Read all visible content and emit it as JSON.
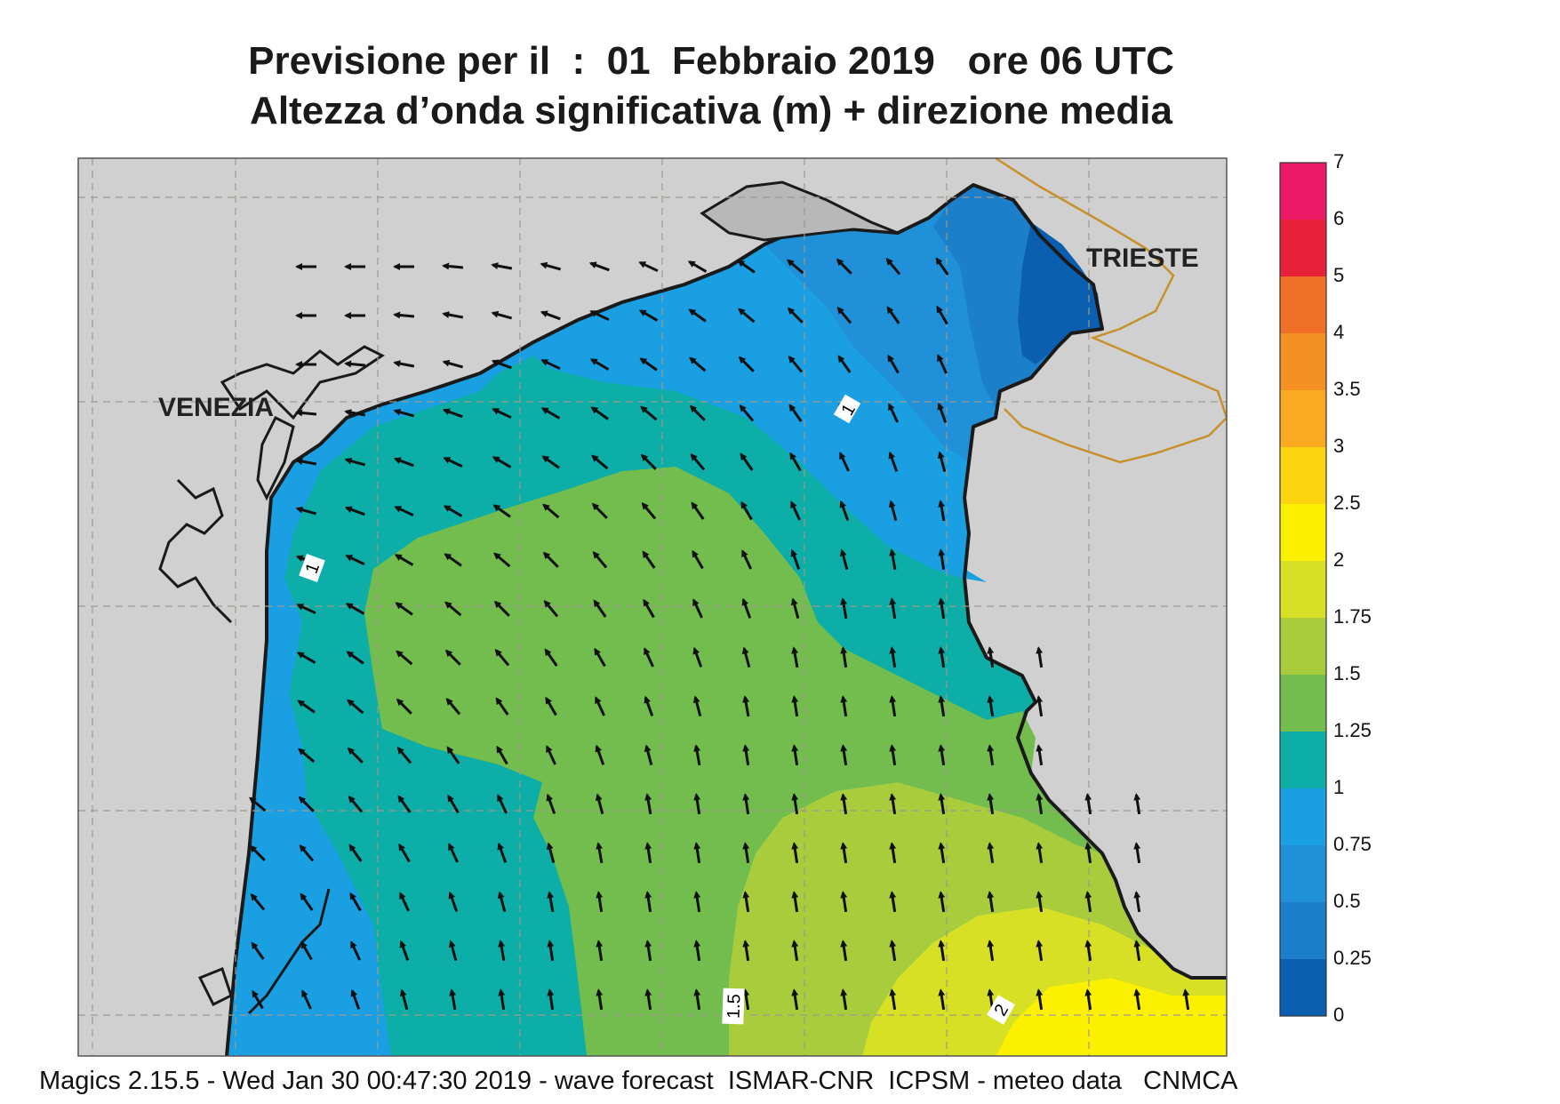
{
  "header": {
    "title_line1": "Previsione per il  :  01  Febbraio 2019   ore 06 UTC",
    "title_line2": "Altezza d’onda significativa (m) + direzione media"
  },
  "map": {
    "place_labels": [
      "VENEZIA",
      "TRIESTE"
    ],
    "contour_labels": [
      "1",
      "1",
      "1.5",
      "2"
    ],
    "sea_colors": {
      "0-0.25": "#0b5fb0",
      "0.25-0.5": "#1c7fc9",
      "0.5-0.75": "#2090d8",
      "0.75-1": "#1aa0e2",
      "1-1.25": "#0dada8",
      "1.25-1.5": "#72bd4e",
      "1.5-1.75": "#a8cc3c",
      "1.75-2": "#d8e026",
      "2-2.5": "#fbf000"
    },
    "land_color": "#d0d0d0",
    "border_color": "#c8902a"
  },
  "legend": {
    "labels": [
      "7",
      "6",
      "5",
      "4",
      "3.5",
      "3",
      "2.5",
      "2",
      "1.75",
      "1.5",
      "1.25",
      "1",
      "0.75",
      "0.5",
      "0.25",
      "0"
    ],
    "colors": [
      "#ee1868",
      "#e8203a",
      "#f07028",
      "#f59022",
      "#f8aa20",
      "#fcd410",
      "#fcf000",
      "#d8e026",
      "#a8cc3c",
      "#72bd4e",
      "#0dada8",
      "#1aa0e2",
      "#2090d8",
      "#1c7fc9",
      "#0b5fb0"
    ]
  },
  "footer": {
    "text": "Magics 2.15.5 - Wed Jan 30 00:47:30 2019 - wave forecast  ISMAR-CNR  ICPSM - meteo data   CNMCA"
  }
}
